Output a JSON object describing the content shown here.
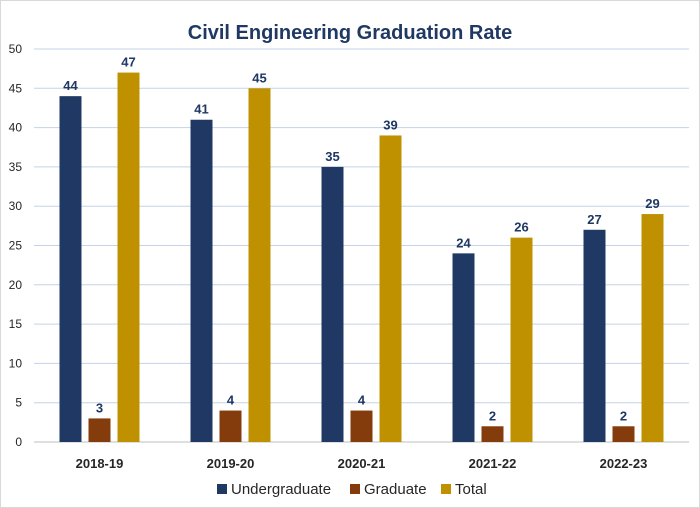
{
  "chart_data": {
    "type": "bar",
    "title": "Civil Engineering Graduation Rate",
    "xlabel": "",
    "ylabel": "",
    "ylim": [
      0,
      50
    ],
    "ytick_step": 5,
    "grid": true,
    "legend_position": "bottom",
    "categories": [
      "2018-19",
      "2019-20",
      "2020-21",
      "2021-22",
      "2022-23"
    ],
    "series": [
      {
        "name": "Undergraduate",
        "color": "#1f3864",
        "values": [
          44,
          41,
          35,
          24,
          27
        ]
      },
      {
        "name": "Graduate",
        "color": "#843c0c",
        "values": [
          3,
          4,
          4,
          2,
          2
        ]
      },
      {
        "name": "Total",
        "color": "#bf9000",
        "values": [
          47,
          45,
          39,
          26,
          29
        ]
      }
    ]
  }
}
